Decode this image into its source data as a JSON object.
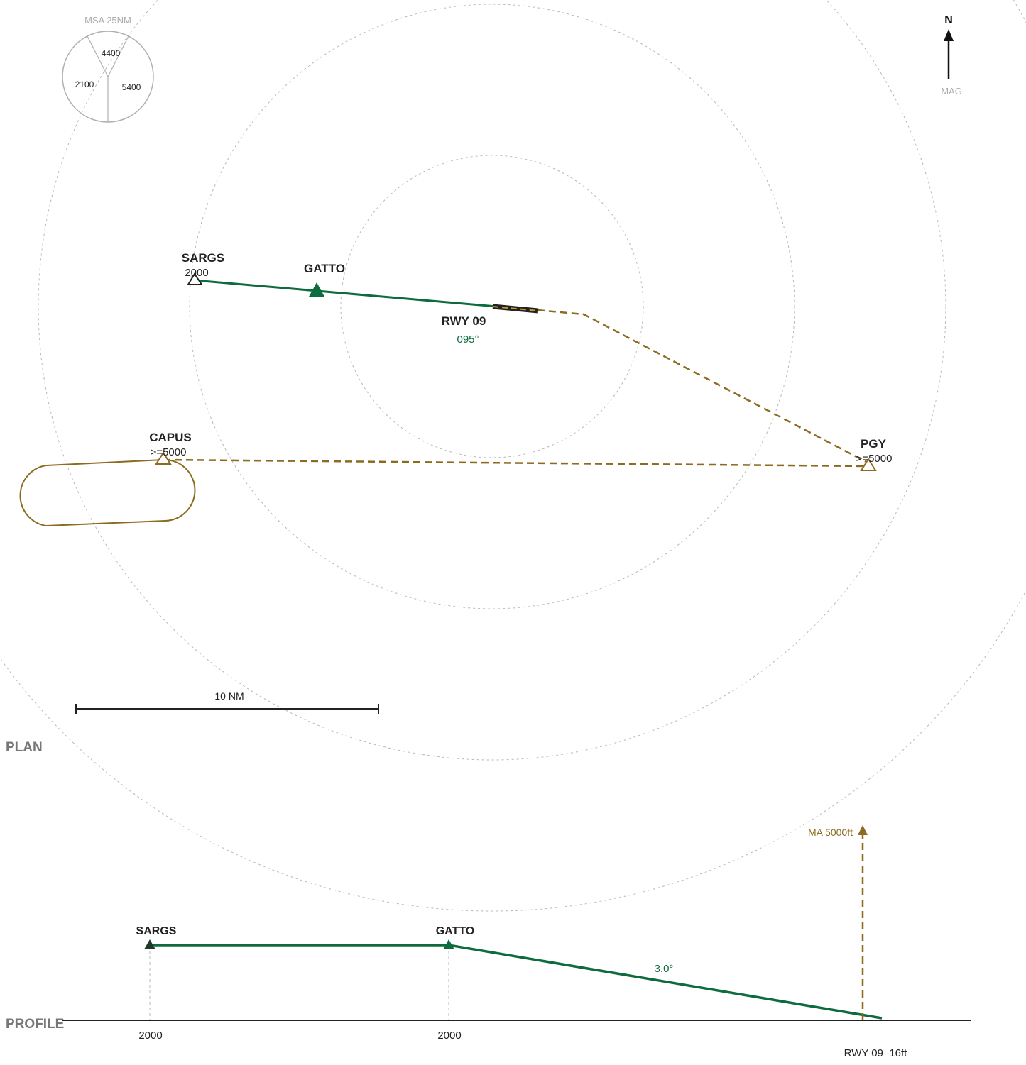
{
  "colors": {
    "approach": "#0e6b3e",
    "missed": "#8c6a1f",
    "grid": "#b8b8b8",
    "text": "#222222",
    "muted": "#aaaaaa",
    "section": "#777777"
  },
  "msa": {
    "title": "MSA 25NM",
    "north": "4400",
    "west": "2100",
    "east": "5400"
  },
  "north_arrow": {
    "label": "N",
    "ref": "MAG"
  },
  "plan": {
    "section_label": "PLAN",
    "waypoints": [
      {
        "name": "SARGS",
        "alt": "2000"
      },
      {
        "name": "GATTO",
        "alt": ""
      },
      {
        "name": "CAPUS",
        "alt": ">=5000"
      },
      {
        "name": "PGY",
        "alt": ">=5000"
      }
    ],
    "runway": {
      "label": "RWY 09",
      "course": "095°"
    },
    "scale": "10 NM"
  },
  "profile": {
    "section_label": "PROFILE",
    "fixes": [
      {
        "name": "SARGS",
        "alt": "2000"
      },
      {
        "name": "GATTO",
        "alt": "2000"
      }
    ],
    "glidepath": "3.0°",
    "missed_approach": "MA 5000ft",
    "threshold": "RWY 09  16ft"
  }
}
